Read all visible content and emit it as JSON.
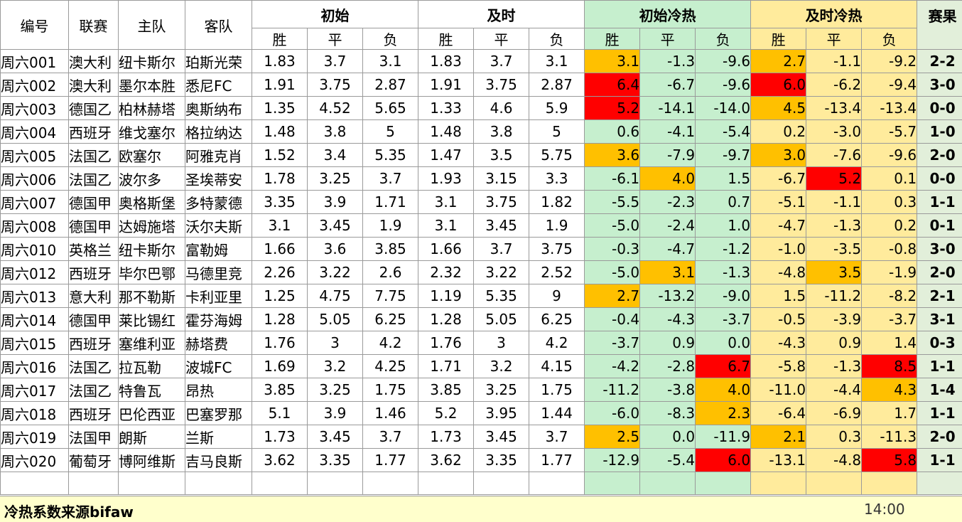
{
  "header": {
    "id": "编号",
    "league": "联赛",
    "home": "主队",
    "away": "客队",
    "initial": "初始",
    "live": "及时",
    "initial_heat": "初始冷热",
    "live_heat": "及时冷热",
    "result": "赛果",
    "win": "胜",
    "draw": "平",
    "loss": "负"
  },
  "colors": {
    "green": "#c6efce",
    "yellow": "#ffeb9c",
    "orange": "#ffc000",
    "red": "#ff0000"
  },
  "rows": [
    {
      "id": "周六001",
      "league": "澳大利",
      "home": "纽卡斯尔",
      "away": "珀斯光荣",
      "i": [
        "1.83",
        "3.7",
        "3.1"
      ],
      "l": [
        "1.83",
        "3.7",
        "3.1"
      ],
      "ih": [
        "3.1",
        "-1.3",
        "-9.6"
      ],
      "lh": [
        "2.7",
        "-1.1",
        "-9.2"
      ],
      "ihc": [
        "o",
        "",
        ""
      ],
      "lhc": [
        "o",
        "",
        ""
      ],
      "res": "2-2"
    },
    {
      "id": "周六002",
      "league": "澳大利",
      "home": "墨尔本胜",
      "away": "悉尼FC",
      "i": [
        "1.91",
        "3.75",
        "2.87"
      ],
      "l": [
        "1.91",
        "3.75",
        "2.87"
      ],
      "ih": [
        "6.4",
        "-6.7",
        "-9.6"
      ],
      "lh": [
        "6.0",
        "-6.2",
        "-9.4"
      ],
      "ihc": [
        "r",
        "",
        ""
      ],
      "lhc": [
        "r",
        "",
        ""
      ],
      "res": "3-0"
    },
    {
      "id": "周六003",
      "league": "德国乙",
      "home": "柏林赫塔",
      "away": "奥斯纳布",
      "i": [
        "1.35",
        "4.52",
        "5.65"
      ],
      "l": [
        "1.33",
        "4.6",
        "5.9"
      ],
      "ih": [
        "5.2",
        "-14.1",
        "-14.0"
      ],
      "lh": [
        "4.5",
        "-13.4",
        "-13.4"
      ],
      "ihc": [
        "r",
        "",
        ""
      ],
      "lhc": [
        "o",
        "",
        ""
      ],
      "res": "0-0"
    },
    {
      "id": "周六004",
      "league": "西班牙",
      "home": "维戈塞尔",
      "away": "格拉纳达",
      "i": [
        "1.48",
        "3.8",
        "5"
      ],
      "l": [
        "1.48",
        "3.8",
        "5"
      ],
      "ih": [
        "0.6",
        "-4.1",
        "-5.4"
      ],
      "lh": [
        "0.2",
        "-3.0",
        "-5.7"
      ],
      "ihc": [
        "",
        "",
        ""
      ],
      "lhc": [
        "",
        "",
        ""
      ],
      "res": "1-0"
    },
    {
      "id": "周六005",
      "league": "法国乙",
      "home": "欧塞尔",
      "away": "阿雅克肖",
      "i": [
        "1.52",
        "3.4",
        "5.35"
      ],
      "l": [
        "1.47",
        "3.5",
        "5.75"
      ],
      "ih": [
        "3.6",
        "-7.9",
        "-9.7"
      ],
      "lh": [
        "3.0",
        "-7.6",
        "-9.6"
      ],
      "ihc": [
        "o",
        "",
        ""
      ],
      "lhc": [
        "o",
        "",
        ""
      ],
      "res": "2-0"
    },
    {
      "id": "周六006",
      "league": "法国乙",
      "home": "波尔多",
      "away": "圣埃蒂安",
      "i": [
        "1.78",
        "3.25",
        "3.7"
      ],
      "l": [
        "1.93",
        "3.15",
        "3.3"
      ],
      "ih": [
        "-6.1",
        "4.0",
        "1.5"
      ],
      "lh": [
        "-6.7",
        "5.2",
        "0.1"
      ],
      "ihc": [
        "",
        "o",
        ""
      ],
      "lhc": [
        "",
        "r",
        ""
      ],
      "res": "0-0"
    },
    {
      "id": "周六007",
      "league": "德国甲",
      "home": "奥格斯堡",
      "away": "多特蒙德",
      "i": [
        "3.35",
        "3.9",
        "1.71"
      ],
      "l": [
        "3.1",
        "3.75",
        "1.82"
      ],
      "ih": [
        "-5.5",
        "-2.3",
        "0.7"
      ],
      "lh": [
        "-5.1",
        "-1.1",
        "0.3"
      ],
      "ihc": [
        "",
        "",
        ""
      ],
      "lhc": [
        "",
        "",
        ""
      ],
      "res": "1-1"
    },
    {
      "id": "周六008",
      "league": "德国甲",
      "home": "达姆施塔",
      "away": "沃尔夫斯",
      "i": [
        "3.1",
        "3.45",
        "1.9"
      ],
      "l": [
        "3.1",
        "3.45",
        "1.9"
      ],
      "ih": [
        "-5.0",
        "-2.4",
        "1.0"
      ],
      "lh": [
        "-4.7",
        "-1.3",
        "0.2"
      ],
      "ihc": [
        "",
        "",
        ""
      ],
      "lhc": [
        "",
        "",
        ""
      ],
      "res": "0-1"
    },
    {
      "id": "周六010",
      "league": "英格兰",
      "home": "纽卡斯尔",
      "away": "富勒姆",
      "i": [
        "1.66",
        "3.6",
        "3.85"
      ],
      "l": [
        "1.66",
        "3.7",
        "3.75"
      ],
      "ih": [
        "-0.3",
        "-4.7",
        "-1.2"
      ],
      "lh": [
        "-1.0",
        "-3.5",
        "-0.8"
      ],
      "ihc": [
        "",
        "",
        ""
      ],
      "lhc": [
        "",
        "",
        ""
      ],
      "res": "3-0"
    },
    {
      "id": "周六012",
      "league": "西班牙",
      "home": "毕尔巴鄂",
      "away": "马德里竞",
      "i": [
        "2.26",
        "3.22",
        "2.6"
      ],
      "l": [
        "2.32",
        "3.22",
        "2.52"
      ],
      "ih": [
        "-5.0",
        "3.1",
        "-1.3"
      ],
      "lh": [
        "-4.8",
        "3.5",
        "-1.9"
      ],
      "ihc": [
        "",
        "o",
        ""
      ],
      "lhc": [
        "",
        "o",
        ""
      ],
      "res": "2-0"
    },
    {
      "id": "周六013",
      "league": "意大利",
      "home": "那不勒斯",
      "away": "卡利亚里",
      "i": [
        "1.25",
        "4.75",
        "7.75"
      ],
      "l": [
        "1.19",
        "5.35",
        "9"
      ],
      "ih": [
        "2.7",
        "-13.2",
        "-9.0"
      ],
      "lh": [
        "1.5",
        "-11.2",
        "-8.2"
      ],
      "ihc": [
        "o",
        "",
        ""
      ],
      "lhc": [
        "",
        "",
        ""
      ],
      "res": "2-1"
    },
    {
      "id": "周六014",
      "league": "德国甲",
      "home": "莱比锡红",
      "away": "霍芬海姆",
      "i": [
        "1.28",
        "5.05",
        "6.25"
      ],
      "l": [
        "1.28",
        "5.05",
        "6.25"
      ],
      "ih": [
        "-0.4",
        "-4.3",
        "-3.7"
      ],
      "lh": [
        "-0.5",
        "-3.9",
        "-3.7"
      ],
      "ihc": [
        "",
        "",
        ""
      ],
      "lhc": [
        "",
        "",
        ""
      ],
      "res": "3-1"
    },
    {
      "id": "周六015",
      "league": "西班牙",
      "home": "塞维利亚",
      "away": "赫塔费",
      "i": [
        "1.76",
        "3",
        "4.2"
      ],
      "l": [
        "1.76",
        "3",
        "4.2"
      ],
      "ih": [
        "-3.7",
        "0.9",
        "0.0"
      ],
      "lh": [
        "-4.3",
        "0.9",
        "1.4"
      ],
      "ihc": [
        "",
        "",
        ""
      ],
      "lhc": [
        "",
        "",
        ""
      ],
      "res": "0-3"
    },
    {
      "id": "周六016",
      "league": "法国乙",
      "home": "拉瓦勒",
      "away": "波城FC",
      "i": [
        "1.69",
        "3.2",
        "4.25"
      ],
      "l": [
        "1.71",
        "3.2",
        "4.15"
      ],
      "ih": [
        "-4.2",
        "-2.8",
        "6.7"
      ],
      "lh": [
        "-5.8",
        "-1.3",
        "8.5"
      ],
      "ihc": [
        "",
        "",
        "r"
      ],
      "lhc": [
        "",
        "",
        "r"
      ],
      "res": "1-1"
    },
    {
      "id": "周六017",
      "league": "法国乙",
      "home": "特鲁瓦",
      "away": "昂热",
      "i": [
        "3.85",
        "3.25",
        "1.75"
      ],
      "l": [
        "3.85",
        "3.25",
        "1.75"
      ],
      "ih": [
        "-11.2",
        "-3.8",
        "4.0"
      ],
      "lh": [
        "-11.0",
        "-4.4",
        "4.3"
      ],
      "ihc": [
        "",
        "",
        "o"
      ],
      "lhc": [
        "",
        "",
        "o"
      ],
      "res": "1-4"
    },
    {
      "id": "周六018",
      "league": "西班牙",
      "home": "巴伦西亚",
      "away": "巴塞罗那",
      "i": [
        "5.1",
        "3.9",
        "1.46"
      ],
      "l": [
        "5.2",
        "3.95",
        "1.44"
      ],
      "ih": [
        "-6.0",
        "-8.3",
        "2.3"
      ],
      "lh": [
        "-6.4",
        "-6.9",
        "1.7"
      ],
      "ihc": [
        "",
        "",
        "o"
      ],
      "lhc": [
        "",
        "",
        ""
      ],
      "res": "1-1"
    },
    {
      "id": "周六019",
      "league": "法国甲",
      "home": "朗斯",
      "away": "兰斯",
      "i": [
        "1.73",
        "3.45",
        "3.7"
      ],
      "l": [
        "1.73",
        "3.45",
        "3.7"
      ],
      "ih": [
        "2.5",
        "0.0",
        "-11.9"
      ],
      "lh": [
        "2.1",
        "0.3",
        "-11.3"
      ],
      "ihc": [
        "o",
        "",
        ""
      ],
      "lhc": [
        "o",
        "",
        ""
      ],
      "res": "2-0"
    },
    {
      "id": "周六020",
      "league": "葡萄牙",
      "home": "博阿维斯",
      "away": "吉马良斯",
      "i": [
        "3.62",
        "3.35",
        "1.77"
      ],
      "l": [
        "3.62",
        "3.35",
        "1.77"
      ],
      "ih": [
        "-12.9",
        "-5.4",
        "6.0"
      ],
      "lh": [
        "-13.1",
        "-4.8",
        "5.8"
      ],
      "ihc": [
        "",
        "",
        "r"
      ],
      "lhc": [
        "",
        "",
        "r"
      ],
      "res": "1-1"
    }
  ],
  "footer": {
    "source": "冷热系数来源bifaw",
    "time": "14:00"
  }
}
